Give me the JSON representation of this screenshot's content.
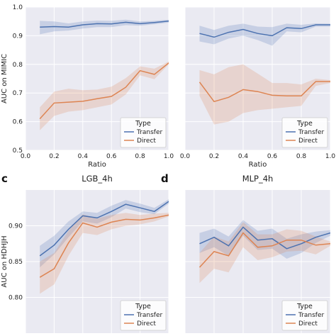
{
  "chart_data": [
    {
      "type": "line",
      "title": "",
      "xlabel": "Ratio",
      "ylabel": "AUC on MIMIC",
      "xlim": [
        0.0,
        1.0
      ],
      "ylim": [
        0.5,
        1.0
      ],
      "xticks": [
        "0.0",
        "0.2",
        "0.4",
        "0.6",
        "0.8",
        "1.0"
      ],
      "yticks": [
        "0.5",
        "0.6",
        "0.7",
        "0.8",
        "0.9",
        "1.0"
      ],
      "grid": true,
      "legend": {
        "title": "Type",
        "position": "bottom-right"
      },
      "x": [
        0.1,
        0.2,
        0.3,
        0.4,
        0.5,
        0.6,
        0.7,
        0.8,
        0.9,
        1.0
      ],
      "series": [
        {
          "name": "Transfer",
          "color": "#4c72b0",
          "values": [
            0.93,
            0.932,
            0.93,
            0.938,
            0.942,
            0.941,
            0.947,
            0.942,
            0.946,
            0.951
          ],
          "band_low": [
            0.905,
            0.915,
            0.918,
            0.925,
            0.93,
            0.93,
            0.937,
            0.935,
            0.94,
            0.946
          ],
          "band_high": [
            0.952,
            0.95,
            0.943,
            0.95,
            0.953,
            0.952,
            0.956,
            0.95,
            0.952,
            0.956
          ]
        },
        {
          "name": "Direct",
          "color": "#dd8452",
          "values": [
            0.61,
            0.665,
            0.668,
            0.671,
            0.68,
            0.688,
            0.72,
            0.778,
            0.765,
            0.805
          ],
          "band_low": [
            0.57,
            0.62,
            0.635,
            0.64,
            0.65,
            0.66,
            0.695,
            0.762,
            0.748,
            0.8
          ],
          "band_high": [
            0.65,
            0.705,
            0.715,
            0.71,
            0.712,
            0.722,
            0.752,
            0.793,
            0.785,
            0.81
          ]
        }
      ]
    },
    {
      "type": "line",
      "title": "",
      "xlabel": "Ratio",
      "ylabel": "",
      "xlim": [
        0.0,
        1.0
      ],
      "ylim": [
        0.5,
        1.0
      ],
      "xticks": [
        "0.0",
        "0.2",
        "0.4",
        "0.6",
        "0.8",
        "1.0"
      ],
      "yticks": [],
      "grid": true,
      "legend": {
        "title": "Type",
        "position": "bottom-right"
      },
      "x": [
        0.1,
        0.2,
        0.3,
        0.4,
        0.5,
        0.6,
        0.7,
        0.8,
        0.9,
        1.0
      ],
      "series": [
        {
          "name": "Transfer",
          "color": "#4c72b0",
          "values": [
            0.908,
            0.895,
            0.912,
            0.922,
            0.908,
            0.9,
            0.928,
            0.925,
            0.938,
            0.938
          ],
          "band_low": [
            0.88,
            0.87,
            0.89,
            0.9,
            0.885,
            0.865,
            0.915,
            0.912,
            0.932,
            0.932
          ],
          "band_high": [
            0.935,
            0.92,
            0.935,
            0.942,
            0.932,
            0.93,
            0.942,
            0.938,
            0.943,
            0.942
          ]
        },
        {
          "name": "Direct",
          "color": "#dd8452",
          "values": [
            0.738,
            0.67,
            0.685,
            0.712,
            0.705,
            0.692,
            0.69,
            0.69,
            0.74,
            0.74
          ],
          "band_low": [
            0.69,
            0.59,
            0.6,
            0.63,
            0.64,
            0.645,
            0.65,
            0.655,
            0.725,
            0.735
          ],
          "band_high": [
            0.78,
            0.765,
            0.79,
            0.8,
            0.768,
            0.735,
            0.735,
            0.73,
            0.75,
            0.745
          ]
        }
      ]
    },
    {
      "type": "line",
      "panel": "c",
      "title": "LGB_4h",
      "xlabel": "",
      "ylabel": "AUC on HDHJH",
      "xlim": [
        0.0,
        1.0
      ],
      "ylim": [
        0.75,
        0.95
      ],
      "xticks": [],
      "yticks": [
        "0.80",
        "0.85",
        "0.90"
      ],
      "grid": true,
      "legend": {
        "title": "Type",
        "position": "bottom-right"
      },
      "x": [
        0.1,
        0.2,
        0.3,
        0.4,
        0.5,
        0.6,
        0.7,
        0.8,
        0.9,
        1.0
      ],
      "series": [
        {
          "name": "Transfer",
          "color": "#4c72b0",
          "values": [
            0.858,
            0.873,
            0.895,
            0.914,
            0.911,
            0.92,
            0.93,
            0.925,
            0.92,
            0.934
          ],
          "band_low": [
            0.842,
            0.86,
            0.884,
            0.906,
            0.903,
            0.912,
            0.924,
            0.919,
            0.916,
            0.931
          ],
          "band_high": [
            0.872,
            0.886,
            0.906,
            0.92,
            0.918,
            0.928,
            0.936,
            0.931,
            0.925,
            0.937
          ]
        },
        {
          "name": "Direct",
          "color": "#dd8452",
          "values": [
            0.828,
            0.84,
            0.876,
            0.904,
            0.898,
            0.905,
            0.909,
            0.908,
            0.911,
            0.915
          ],
          "band_low": [
            0.805,
            0.818,
            0.858,
            0.89,
            0.887,
            0.895,
            0.9,
            0.902,
            0.906,
            0.913
          ],
          "band_high": [
            0.85,
            0.862,
            0.893,
            0.916,
            0.91,
            0.915,
            0.918,
            0.915,
            0.917,
            0.918
          ]
        }
      ]
    },
    {
      "type": "line",
      "panel": "d",
      "title": "MLP_4h",
      "xlabel": "",
      "ylabel": "",
      "xlim": [
        0.0,
        1.0
      ],
      "ylim": [
        0.75,
        0.95
      ],
      "xticks": [],
      "yticks": [],
      "grid": true,
      "legend": {
        "title": "Type",
        "position": "bottom-right"
      },
      "x": [
        0.1,
        0.2,
        0.3,
        0.4,
        0.5,
        0.6,
        0.7,
        0.8,
        0.9,
        1.0
      ],
      "series": [
        {
          "name": "Transfer",
          "color": "#4c72b0",
          "values": [
            0.875,
            0.884,
            0.872,
            0.898,
            0.88,
            0.882,
            0.868,
            0.875,
            0.884,
            0.89
          ],
          "band_low": [
            0.862,
            0.87,
            0.858,
            0.886,
            0.866,
            0.868,
            0.854,
            0.862,
            0.876,
            0.886
          ],
          "band_high": [
            0.89,
            0.896,
            0.885,
            0.908,
            0.893,
            0.896,
            0.882,
            0.888,
            0.892,
            0.894
          ]
        },
        {
          "name": "Direct",
          "color": "#dd8452",
          "values": [
            0.842,
            0.864,
            0.858,
            0.89,
            0.87,
            0.872,
            0.88,
            0.88,
            0.873,
            0.875
          ],
          "band_low": [
            0.82,
            0.84,
            0.835,
            0.87,
            0.852,
            0.856,
            0.864,
            0.865,
            0.86,
            0.872
          ],
          "band_high": [
            0.862,
            0.885,
            0.878,
            0.905,
            0.888,
            0.888,
            0.895,
            0.893,
            0.885,
            0.878
          ]
        }
      ]
    }
  ]
}
